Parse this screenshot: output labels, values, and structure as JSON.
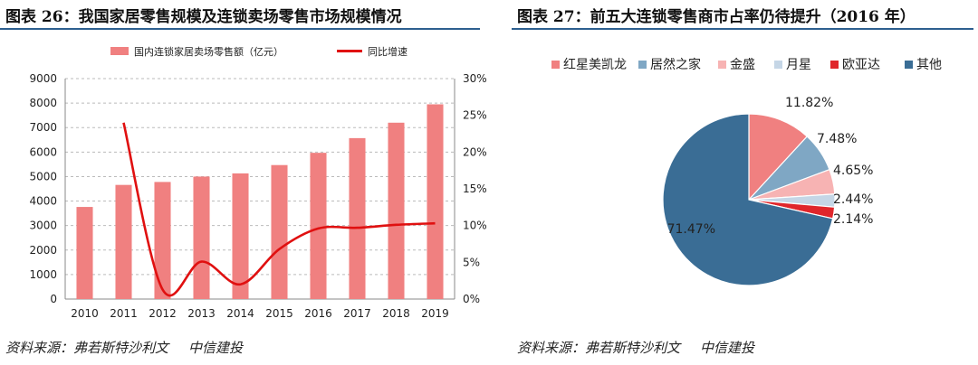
{
  "left": {
    "title": "图表 26：我国家居零售规模及连锁卖场零售市场规模情况",
    "source_label": "资料来源：弗若斯特沙利文",
    "source_org": "中信建投"
  },
  "right": {
    "title": "图表 27：前五大连锁零售商市占率仍待提升（2016 年）",
    "source_label": "资料来源：弗若斯特沙利文",
    "source_org": "中信建投"
  },
  "chart_data": [
    {
      "type": "bar",
      "categories": [
        "2010",
        "2011",
        "2012",
        "2013",
        "2014",
        "2015",
        "2016",
        "2017",
        "2018",
        "2019"
      ],
      "series": [
        {
          "name": "国内连锁家居卖场零售额（亿元）",
          "type": "bar",
          "axis": "left",
          "color": "#f08080",
          "values": [
            3760,
            4660,
            4780,
            5000,
            5130,
            5470,
            5970,
            6570,
            7200,
            7950
          ]
        },
        {
          "name": "同比增速",
          "type": "line",
          "axis": "right",
          "color": "#e01010",
          "values": [
            null,
            24.0,
            1.3,
            5.1,
            2.0,
            6.8,
            9.6,
            9.7,
            10.1,
            10.3
          ]
        }
      ],
      "y_left": {
        "min": 0,
        "max": 9000,
        "ticks": [
          "0",
          "1000",
          "2000",
          "3000",
          "4000",
          "5000",
          "6000",
          "7000",
          "8000",
          "9000"
        ]
      },
      "y_right": {
        "min": 0,
        "max": 30,
        "ticks": [
          "0%",
          "5%",
          "10%",
          "15%",
          "20%",
          "25%",
          "30%"
        ]
      },
      "grid": "dashed-horizontal",
      "legend": "top"
    },
    {
      "type": "pie",
      "labels": [
        "红星美凯龙",
        "居然之家",
        "金盛",
        "月星",
        "欧亚达",
        "其他"
      ],
      "values": [
        11.82,
        7.48,
        4.65,
        2.44,
        2.14,
        71.47
      ],
      "value_labels": [
        "11.82%",
        "7.48%",
        "4.65%",
        "2.44%",
        "2.14%",
        "71.47%"
      ],
      "colors": [
        "#f08080",
        "#7fa7c4",
        "#f7b3b3",
        "#c5d6e6",
        "#e0262b",
        "#3a6d95"
      ],
      "legend": "top"
    }
  ]
}
